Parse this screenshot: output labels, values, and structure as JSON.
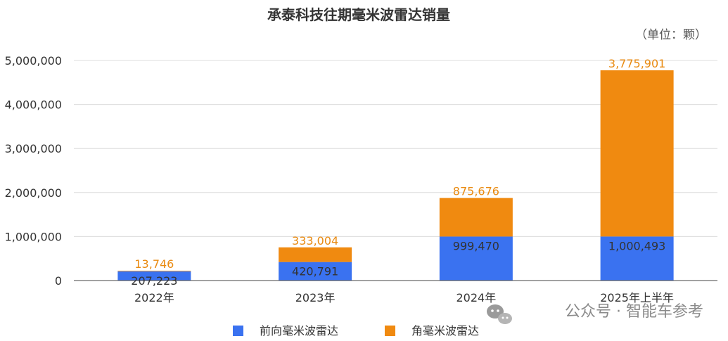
{
  "colors": {
    "front": "#3a72f0",
    "corner": "#f08a10",
    "grid": "#dcdcdc",
    "axis": "#444444"
  },
  "watermark": "公众号 · 智能车参考",
  "chart_data": {
    "type": "bar",
    "stacked": true,
    "title": "承泰科技往期毫米波雷达销量",
    "unit_label": "（单位：颗）",
    "categories": [
      "2022年",
      "2023年",
      "2024年",
      "2025年上半年"
    ],
    "series": [
      {
        "name": "前向毫米波雷达",
        "values": [
          207223,
          420791,
          999470,
          1000493
        ],
        "labels": [
          "207,223",
          "420,791",
          "999,470",
          "1,000,493"
        ]
      },
      {
        "name": "角毫米波雷达",
        "values": [
          13746,
          333004,
          875676,
          3775901
        ],
        "labels": [
          "13,746",
          "333,004",
          "875,676",
          "3,775,901"
        ]
      }
    ],
    "ylim": [
      0,
      5000000
    ],
    "yticks": [
      0,
      1000000,
      2000000,
      3000000,
      4000000,
      5000000
    ],
    "ytick_labels": [
      "0",
      "1,000,000",
      "2,000,000",
      "3,000,000",
      "4,000,000",
      "5,000,000"
    ],
    "grid": true,
    "legend_position": "bottom"
  }
}
